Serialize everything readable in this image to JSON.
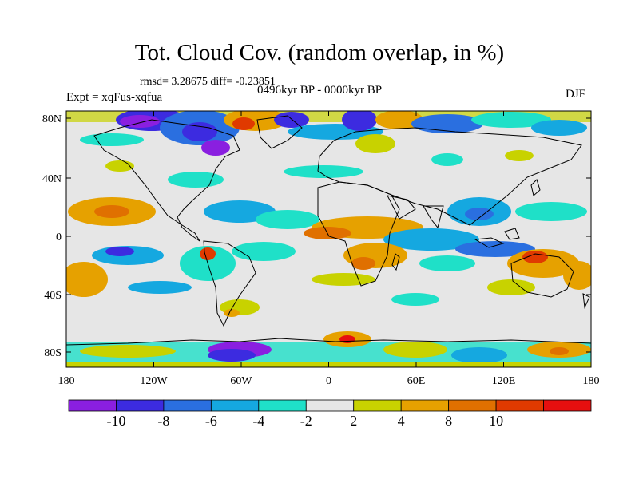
{
  "header": {
    "title": "Tot. Cloud Cov. (random overlap, in %)",
    "stats": "rmsd= 3.28675  diff= -0.23851",
    "experiment": "Expt = xqFus-xqfua",
    "period": "0496kyr BP - 0000kyr BP",
    "season": "DJF"
  },
  "map": {
    "lat_ticks": [
      "80N",
      "40N",
      "0",
      "40S",
      "80S"
    ],
    "lon_ticks": [
      "180",
      "120W",
      "60W",
      "0",
      "60E",
      "120E",
      "180"
    ],
    "background_color": "#e6e6e6"
  },
  "colorbar": {
    "labels": [
      "-10",
      "-8",
      "-6",
      "-4",
      "-2",
      "2",
      "4",
      "8",
      "10"
    ],
    "colors": [
      "#8a1fe0",
      "#3c2be0",
      "#2a6fe0",
      "#15a8e0",
      "#1fe0c8",
      "#e6e6e6",
      "#c8d200",
      "#e6a100",
      "#e07000",
      "#e03a00",
      "#e60f0f"
    ]
  }
}
